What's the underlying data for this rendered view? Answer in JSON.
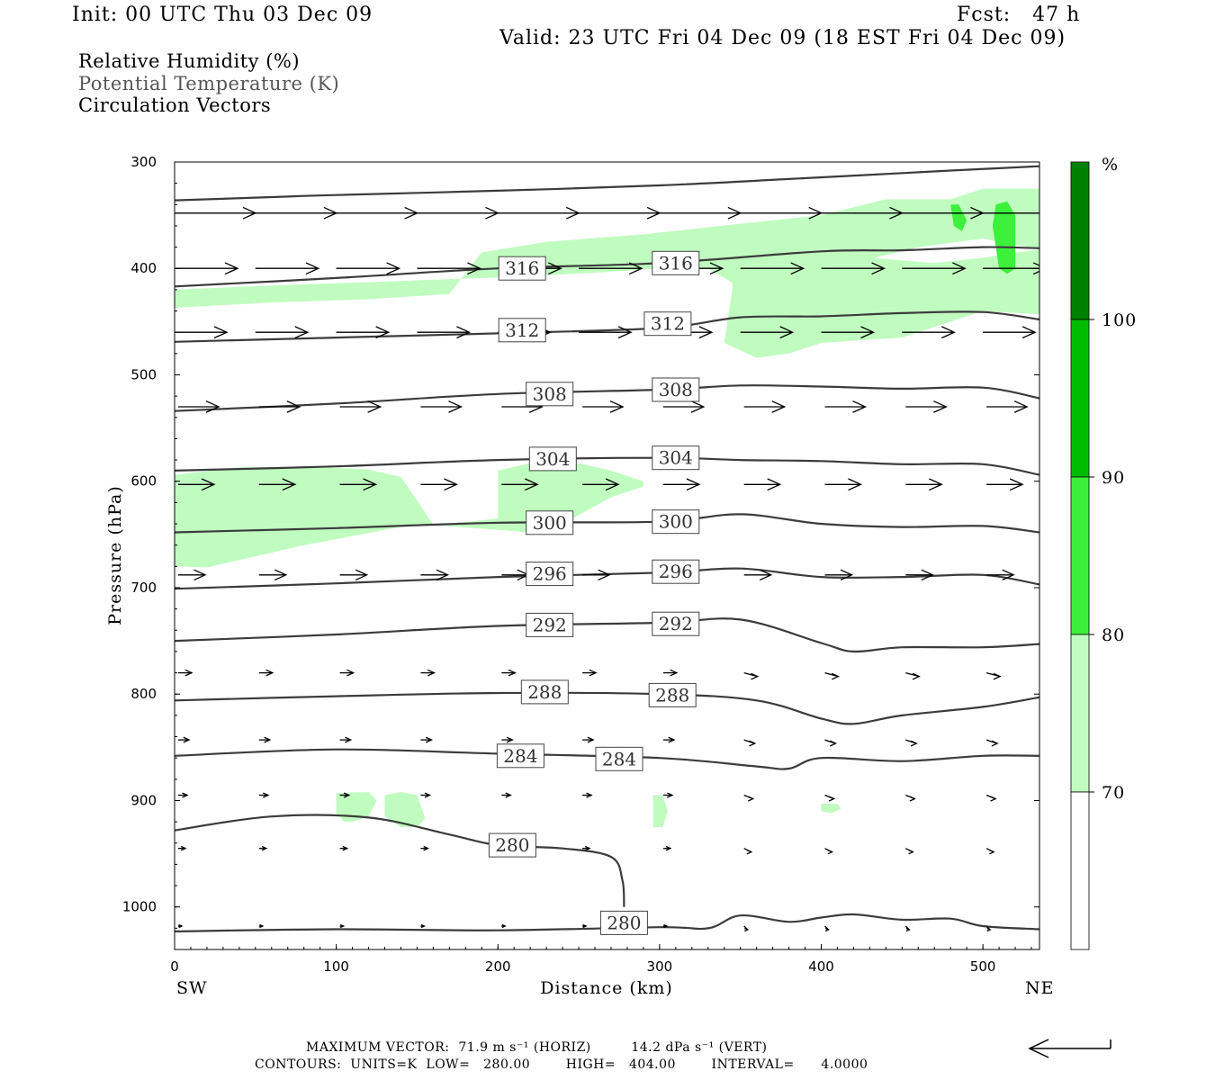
{
  "header": {
    "init": "Init: 00 UTC Thu 03 Dec 09",
    "fcst": "Fcst:   47 h",
    "valid": "Valid: 23 UTC Fri 04 Dec 09 (18 EST Fri 04 Dec 09)"
  },
  "legend": {
    "field1": "Relative Humidity (%)",
    "field2": "Potential Temperature (K)",
    "field3": "Circulation Vectors"
  },
  "footer": {
    "max_vector": "MAXIMUM VECTOR:  71.9 m s⁻¹ (HORIZ)         14.2 dPa s⁻¹ (VERT)",
    "contours": "CONTOURS:  UNITS=K  LOW=   280.00        HIGH=   404.00        INTERVAL=      4.0000"
  },
  "colors": {
    "rh70": "#c0fcc0",
    "rh80": "#3cf03c",
    "rh90": "#00bc00",
    "rh100": "#008000",
    "contour": "#3c3c3c",
    "vector": "#000000"
  },
  "chart_data": {
    "type": "cross-section",
    "xlabel": "Distance (km)",
    "ylabel": "Pressure (hPa)",
    "x_left_label": "SW",
    "x_right_label": "NE",
    "xlim": [
      0,
      535
    ],
    "ylim_hPa": [
      300,
      1040
    ],
    "y_scale": "linear (inverted)",
    "xticks": [
      0,
      100,
      200,
      300,
      400,
      500
    ],
    "yticks": [
      300,
      400,
      500,
      600,
      700,
      800,
      900,
      1000
    ],
    "colorbar": {
      "unit": "%",
      "levels": [
        70,
        80,
        90,
        100
      ],
      "colors": [
        "#ffffff",
        "#c0fcc0",
        "#3cf03c",
        "#00bc00",
        "#008000"
      ]
    },
    "contour_labels": [
      {
        "value": "316",
        "x": 215,
        "p": 400
      },
      {
        "value": "316",
        "x": 310,
        "p": 395
      },
      {
        "value": "312",
        "x": 215,
        "p": 458
      },
      {
        "value": "312",
        "x": 305,
        "p": 452
      },
      {
        "value": "308",
        "x": 232,
        "p": 518
      },
      {
        "value": "308",
        "x": 310,
        "p": 514
      },
      {
        "value": "304",
        "x": 234,
        "p": 579
      },
      {
        "value": "304",
        "x": 310,
        "p": 578
      },
      {
        "value": "300",
        "x": 232,
        "p": 639
      },
      {
        "value": "300",
        "x": 310,
        "p": 638
      },
      {
        "value": "296",
        "x": 232,
        "p": 687
      },
      {
        "value": "296",
        "x": 310,
        "p": 685
      },
      {
        "value": "292",
        "x": 232,
        "p": 735
      },
      {
        "value": "292",
        "x": 310,
        "p": 734
      },
      {
        "value": "288",
        "x": 229,
        "p": 798
      },
      {
        "value": "288",
        "x": 308,
        "p": 801
      },
      {
        "value": "284",
        "x": 214,
        "p": 858
      },
      {
        "value": "284",
        "x": 275,
        "p": 861
      },
      {
        "value": "280",
        "x": 209,
        "p": 942
      },
      {
        "value": "280",
        "x": 278,
        "p": 1015
      }
    ],
    "isentropes": [
      {
        "value": 320,
        "x": [
          0,
          60,
          100,
          200,
          300,
          380,
          480,
          535
        ],
        "p": [
          336,
          333,
          331,
          327,
          322,
          316,
          308,
          304
        ]
      },
      {
        "value": 316,
        "x": [
          0,
          100,
          200,
          300,
          400,
          450,
          500,
          535
        ],
        "p": [
          417,
          409,
          400,
          395,
          384,
          383,
          380,
          381
        ]
      },
      {
        "value": 312,
        "x": [
          0,
          100,
          200,
          300,
          350,
          400,
          450,
          500,
          535
        ],
        "p": [
          469,
          465,
          461,
          456,
          446,
          445,
          442,
          441,
          448
        ]
      },
      {
        "value": 308,
        "x": [
          0,
          100,
          200,
          300,
          350,
          400,
          450,
          500,
          535
        ],
        "p": [
          534,
          527,
          518,
          514,
          510,
          511,
          513,
          512,
          522
        ]
      },
      {
        "value": 304,
        "x": [
          0,
          100,
          200,
          300,
          350,
          400,
          450,
          500,
          535
        ],
        "p": [
          590,
          586,
          580,
          578,
          580,
          581,
          584,
          584,
          594
        ]
      },
      {
        "value": 300,
        "x": [
          0,
          100,
          200,
          300,
          350,
          400,
          450,
          500,
          535
        ],
        "p": [
          648,
          644,
          639,
          638,
          631,
          640,
          643,
          642,
          648
        ]
      },
      {
        "value": 296,
        "x": [
          0,
          100,
          200,
          300,
          350,
          400,
          450,
          500,
          535
        ],
        "p": [
          701,
          696,
          690,
          686,
          682,
          690,
          690,
          688,
          697
        ]
      },
      {
        "value": 292,
        "x": [
          0,
          100,
          200,
          300,
          350,
          400,
          420,
          450,
          500,
          535
        ],
        "p": [
          750,
          744,
          736,
          733,
          730,
          752,
          760,
          756,
          756,
          753
        ]
      },
      {
        "value": 288,
        "x": [
          0,
          100,
          200,
          300,
          360,
          400,
          420,
          450,
          500,
          535
        ],
        "p": [
          806,
          802,
          799,
          800,
          806,
          823,
          828,
          820,
          812,
          803
        ]
      },
      {
        "value": 284,
        "x": [
          0,
          100,
          200,
          300,
          360,
          380,
          400,
          450,
          500,
          535
        ],
        "p": [
          858,
          852,
          856,
          860,
          868,
          870,
          860,
          863,
          858,
          858
        ]
      },
      {
        "value": 280,
        "x": [
          0,
          60,
          120,
          170,
          200,
          240,
          270,
          277,
          278
        ],
        "p": [
          928,
          915,
          916,
          932,
          942,
          945,
          953,
          975,
          1000
        ]
      },
      {
        "value": 280,
        "x": [
          0,
          100,
          200,
          300,
          330,
          350,
          380,
          400,
          420,
          450,
          480,
          500,
          535
        ],
        "p": [
          1023,
          1021,
          1022,
          1019,
          1020,
          1008,
          1014,
          1010,
          1007,
          1012,
          1011,
          1018,
          1021
        ]
      }
    ],
    "rh_regions": [
      {
        "level": "70-80",
        "x": [
          190,
          230,
          290,
          350,
          400,
          440,
          480,
          500,
          535,
          535,
          500,
          460,
          420,
          370,
          350,
          330,
          300,
          260,
          210,
          170,
          120,
          60,
          0,
          0,
          60,
          120,
          170
        ],
        "p": [
          385,
          375,
          368,
          358,
          350,
          335,
          335,
          325,
          325,
          382,
          372,
          380,
          395,
          410,
          418,
          400,
          400,
          404,
          408,
          410,
          413,
          416,
          420,
          437,
          432,
          429,
          424
        ]
      },
      {
        "level": "70-80",
        "x": [
          345,
          360,
          380,
          400,
          430,
          470,
          500,
          535,
          535,
          500,
          450,
          400,
          380,
          360,
          340,
          345
        ],
        "p": [
          400,
          395,
          390,
          388,
          390,
          395,
          390,
          382,
          443,
          440,
          465,
          470,
          480,
          484,
          470,
          420
        ]
      },
      {
        "level": "70-80",
        "x": [
          0,
          40,
          80,
          120,
          140,
          150,
          160,
          170,
          200,
          220,
          220,
          150,
          80,
          20,
          0
        ],
        "p": [
          594,
          587,
          586,
          589,
          596,
          618,
          641,
          640,
          635,
          638,
          648,
          640,
          660,
          681,
          680
        ]
      },
      {
        "level": "70-80",
        "x": [
          200,
          220,
          250,
          270,
          290,
          290,
          270,
          240,
          215,
          200
        ],
        "p": [
          590,
          583,
          583,
          590,
          600,
          605,
          615,
          640,
          648,
          640
        ]
      },
      {
        "level": "70-80",
        "x": [
          100,
          120,
          125,
          120,
          110,
          105,
          100
        ],
        "p": [
          893,
          892,
          900,
          915,
          920,
          920,
          912
        ]
      },
      {
        "level": "70-80",
        "x": [
          130,
          140,
          150,
          155,
          150,
          140,
          130
        ],
        "p": [
          895,
          892,
          895,
          917,
          925,
          925,
          915
        ]
      },
      {
        "level": "70-80",
        "x": [
          296,
          302,
          305,
          302,
          296
        ],
        "p": [
          895,
          895,
          910,
          925,
          925
        ]
      },
      {
        "level": "70-80",
        "x": [
          400,
          410,
          412,
          406,
          400
        ],
        "p": [
          903,
          903,
          908,
          912,
          910
        ]
      },
      {
        "level": "80-90",
        "x": [
          480,
          485,
          490,
          487,
          482
        ],
        "p": [
          340,
          340,
          355,
          365,
          360
        ]
      },
      {
        "level": "80-90",
        "x": [
          508,
          515,
          520,
          520,
          515,
          510,
          506
        ],
        "p": [
          340,
          337,
          350,
          400,
          405,
          400,
          360
        ]
      }
    ],
    "vectors_note": "Circulation vectors: predominantly west-to-east (SW to NE); long arrows aloft (300-500 hPa), shrinking to short arrows near the surface."
  }
}
